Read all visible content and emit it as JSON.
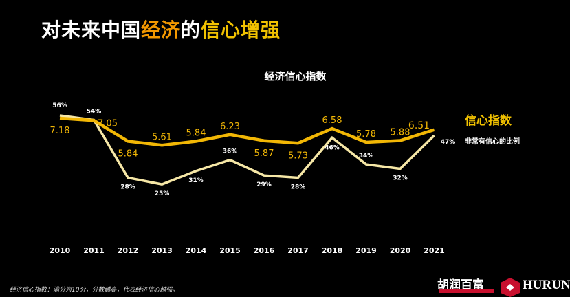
{
  "title": {
    "part1": "对未来中国",
    "part2": "经济",
    "part3": "的",
    "part4": "信心增强"
  },
  "chart_data": {
    "type": "line",
    "title": "经济信心指数",
    "categories": [
      "2010",
      "2011",
      "2012",
      "2013",
      "2014",
      "2015",
      "2016",
      "2017",
      "2018",
      "2019",
      "2020",
      "2021"
    ],
    "series": [
      {
        "name": "信心指数",
        "values": [
          7.18,
          7.05,
          5.84,
          5.61,
          5.84,
          6.23,
          5.87,
          5.73,
          6.58,
          5.78,
          5.88,
          6.51
        ],
        "labels": [
          "7.18",
          "7.05",
          "5.84",
          "5.61",
          "5.84",
          "6.23",
          "5.87",
          "5.73",
          "6.58",
          "5.78",
          "5.88",
          "6.51"
        ],
        "color": "#f2b705"
      },
      {
        "name": "非常有信心的比例",
        "values": [
          56,
          54,
          28,
          25,
          31,
          36,
          29,
          28,
          46,
          34,
          32,
          47
        ],
        "labels": [
          "56%",
          "54%",
          "28%",
          "25%",
          "31%",
          "36%",
          "29%",
          "28%",
          "46%",
          "34%",
          "32%",
          "47%"
        ],
        "color": "#f6e7a6"
      }
    ],
    "grid": false,
    "legend": "right, inline at line ends"
  },
  "footnote": "经济信心指数：满分为10分，分数越高，代表经济信心越强。",
  "logo": {
    "cn": "胡润百富",
    "en": "HURUN"
  },
  "colors": {
    "orange": "#f39800",
    "yellow": "#f2c200"
  }
}
